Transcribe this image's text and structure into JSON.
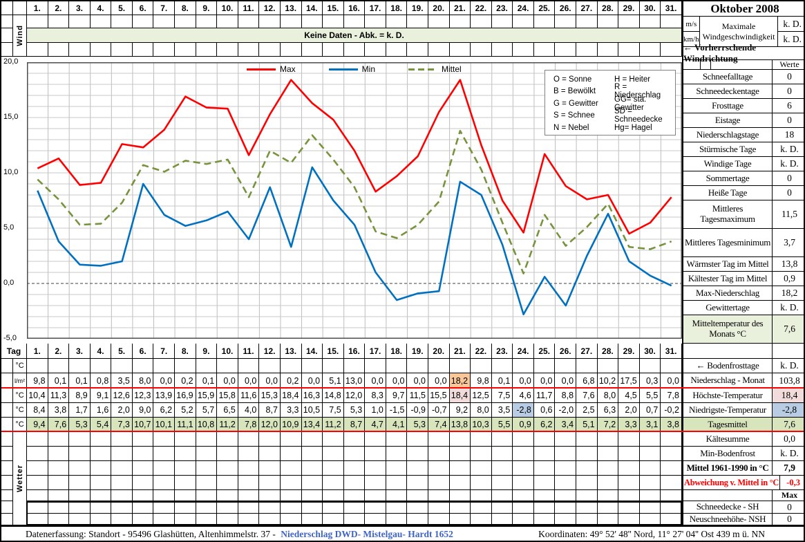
{
  "title": "Oktober 2008",
  "days": [
    "1.",
    "2.",
    "3.",
    "4.",
    "5.",
    "6.",
    "7.",
    "8.",
    "9.",
    "10.",
    "11.",
    "12.",
    "13.",
    "14.",
    "15.",
    "16.",
    "17.",
    "18.",
    "19.",
    "20.",
    "21.",
    "22.",
    "23.",
    "24.",
    "25.",
    "26.",
    "27.",
    "28.",
    "29.",
    "30.",
    "31."
  ],
  "top": {
    "wind_label": "Wind",
    "keine_daten": "Keine Daten - Abk. = k. D.",
    "ms": "m/s",
    "kmh": "km/h",
    "max_wind_label": "Maximale Windgeschwindigkeit",
    "max_wind_ms_value": "k. D.",
    "max_wind_kmh_value": "k. D.",
    "windrichtung": "← Vorherrschende Windrichtung",
    "werte_header": "Werte"
  },
  "sidebar_stats": [
    {
      "label": "Schneefalltage",
      "value": "0"
    },
    {
      "label": "Schneedeckentage",
      "value": "0"
    },
    {
      "label": "Frosttage",
      "value": "6"
    },
    {
      "label": "Eistage",
      "value": "0"
    },
    {
      "label": "Niederschlagstage",
      "value": "18"
    },
    {
      "label": "Stürmische Tage",
      "value": "k. D."
    },
    {
      "label": "Windige Tage",
      "value": "k. D."
    },
    {
      "label": "Sommertage",
      "value": "0"
    },
    {
      "label": "Heiße Tage",
      "value": "0"
    },
    {
      "label": "Mittleres Tagesmaximum",
      "value": "11,5"
    },
    {
      "label": "Mittleres Tagesminimum",
      "value": "3,7"
    },
    {
      "label": "Wärmster Tag im Mittel",
      "value": "13,8"
    },
    {
      "label": "Kältester Tag im Mittel",
      "value": "0,9"
    },
    {
      "label": "Max-Niederschlag",
      "value": "18,2"
    },
    {
      "label": "Gewittertage",
      "value": "k. D."
    },
    {
      "label": "Mitteltemperatur des Monats °C",
      "value": "7,6"
    }
  ],
  "sidebar_bottom": [
    {
      "label": "",
      "value": ""
    },
    {
      "label": "← Bodenfrosttage",
      "value": "k. D."
    },
    {
      "label": "Niederschlag - Monat",
      "value": "103,8"
    },
    {
      "label": "Höchste-Temperatur",
      "value": "18,4"
    },
    {
      "label": "Niedrigste-Temperatur",
      "value": "-2,8"
    },
    {
      "label": "Tagesmittel",
      "value": "7,6"
    },
    {
      "label": "Kältesumme",
      "value": "0,0"
    },
    {
      "label": "Min-Bodenfrost",
      "value": "k. D."
    },
    {
      "label": "Mittel 1961-1990 in °C",
      "value": "7,9"
    },
    {
      "label": "Abweichung v. Mittel in °C",
      "value": "-0,3"
    },
    {
      "label": "",
      "value": "Max"
    },
    {
      "label": "Schneedecke -   SH",
      "value": "0"
    },
    {
      "label": "Neuschneehöhe- NSH",
      "value": "0"
    }
  ],
  "weather_codes": {
    "left": [
      "O = Sonne",
      "B = Bewölkt",
      "G = Gewitter",
      "S = Schnee",
      "N = Nebel"
    ],
    "right": [
      "H = Heiter",
      "R = Niederschlag",
      "GG= sta. Gewitter",
      "SD = Schneedecke",
      "Hg= Hagel"
    ]
  },
  "chart_data": {
    "type": "line",
    "title": "",
    "x": [
      1,
      2,
      3,
      4,
      5,
      6,
      7,
      8,
      9,
      10,
      11,
      12,
      13,
      14,
      15,
      16,
      17,
      18,
      19,
      20,
      21,
      22,
      23,
      24,
      25,
      26,
      27,
      28,
      29,
      30,
      31
    ],
    "ylim": [
      -5,
      20
    ],
    "grid": true,
    "legend_position": "top-center",
    "yticks": [
      {
        "label": "20,0",
        "v": 20
      },
      {
        "label": "15,0",
        "v": 15
      },
      {
        "label": "10,0",
        "v": 10
      },
      {
        "label": "5,0",
        "v": 5
      },
      {
        "label": "0,0",
        "v": 0
      },
      {
        "label": "-5,0",
        "v": -5
      }
    ],
    "series": [
      {
        "name": "Max",
        "color": "#FF0000",
        "dash": false,
        "values": [
          10.4,
          11.3,
          8.9,
          9.1,
          12.6,
          12.3,
          13.9,
          16.9,
          15.9,
          15.8,
          11.6,
          15.3,
          18.4,
          16.3,
          14.8,
          12.0,
          8.3,
          9.7,
          11.5,
          15.5,
          18.4,
          12.5,
          7.5,
          4.6,
          11.7,
          8.8,
          7.6,
          8.0,
          4.5,
          5.5,
          7.8
        ]
      },
      {
        "name": "Min",
        "color": "#0070C0",
        "dash": false,
        "values": [
          8.4,
          3.8,
          1.7,
          1.6,
          2.0,
          9.0,
          6.2,
          5.2,
          5.7,
          6.5,
          4.0,
          8.7,
          3.3,
          10.5,
          7.5,
          5.3,
          1.0,
          -1.5,
          -0.9,
          -0.7,
          9.2,
          8.0,
          3.5,
          -2.8,
          0.6,
          -2.0,
          2.5,
          6.3,
          2.0,
          0.7,
          -0.2
        ]
      },
      {
        "name": "Mittel",
        "color": "#77933C",
        "dash": true,
        "values": [
          9.4,
          7.6,
          5.3,
          5.4,
          7.3,
          10.7,
          10.1,
          11.1,
          10.8,
          11.2,
          7.8,
          12.0,
          10.9,
          13.4,
          11.2,
          8.7,
          4.7,
          4.1,
          5.3,
          7.4,
          13.8,
          10.3,
          5.5,
          0.9,
          6.2,
          3.4,
          5.1,
          7.2,
          3.3,
          3.1,
          3.8
        ]
      }
    ]
  },
  "table": {
    "tag_label": "Tag",
    "rows": [
      {
        "unit": "°C",
        "values": []
      },
      {
        "unit": "l/m²",
        "values": [
          "9,8",
          "0,1",
          "0,1",
          "0,8",
          "3,5",
          "8,0",
          "0,0",
          "0,2",
          "0,1",
          "0,0",
          "0,0",
          "0,0",
          "0,2",
          "0,0",
          "5,1",
          "13,0",
          "0,0",
          "0,0",
          "0,0",
          "0,0",
          "18,2",
          "9,8",
          "0,1",
          "0,0",
          "0,0",
          "0,0",
          "6,8",
          "10,2",
          "17,5",
          "0,3",
          "0,0"
        ],
        "highlights": {
          "20": "orange"
        }
      },
      {
        "unit": "°C",
        "values": [
          "10,4",
          "11,3",
          "8,9",
          "9,1",
          "12,6",
          "12,3",
          "13,9",
          "16,9",
          "15,9",
          "15,8",
          "11,6",
          "15,3",
          "18,4",
          "16,3",
          "14,8",
          "12,0",
          "8,3",
          "9,7",
          "11,5",
          "15,5",
          "18,4",
          "12,5",
          "7,5",
          "4,6",
          "11,7",
          "8,8",
          "7,6",
          "8,0",
          "4,5",
          "5,5",
          "7,8"
        ],
        "highlights": {
          "20": "pink"
        }
      },
      {
        "unit": "°C",
        "values": [
          "8,4",
          "3,8",
          "1,7",
          "1,6",
          "2,0",
          "9,0",
          "6,2",
          "5,2",
          "5,7",
          "6,5",
          "4,0",
          "8,7",
          "3,3",
          "10,5",
          "7,5",
          "5,3",
          "1,0",
          "-1,5",
          "-0,9",
          "-0,7",
          "9,2",
          "8,0",
          "3,5",
          "-2,8",
          "0,6",
          "-2,0",
          "2,5",
          "6,3",
          "2,0",
          "0,7",
          "-0,2"
        ],
        "highlights": {
          "23": "blue"
        }
      },
      {
        "unit": "°C",
        "values": [
          "9,4",
          "7,6",
          "5,3",
          "5,4",
          "7,3",
          "10,7",
          "10,1",
          "11,1",
          "10,8",
          "11,2",
          "7,8",
          "12,0",
          "10,9",
          "13,4",
          "11,2",
          "8,7",
          "4,7",
          "4,1",
          "5,3",
          "7,4",
          "13,8",
          "10,3",
          "5,5",
          "0,9",
          "6,2",
          "3,4",
          "5,1",
          "7,2",
          "3,3",
          "3,1",
          "3,8"
        ],
        "green": true
      }
    ]
  },
  "wetter_label": "Wetter",
  "footer": {
    "left_plain": "Datenerfassung:  Standort -  95496  Glashütten, Altenhimmelstr. 37 -",
    "left_link": "Niederschlag DWD- Mistelgau- Hardt 1652",
    "right": "Koordinaten:  49° 52' 48'' Nord,   11° 27' 04'' Ost   439 m ü. NN"
  },
  "colors": {
    "line_max": "#FF0000",
    "line_min": "#0070C0",
    "line_mittel": "#77933C",
    "band_green": "#E9F0DC",
    "row_green": "#D8E4BC",
    "cell_orange": "#FAC898",
    "cell_pink": "#F1DBDB",
    "cell_blue": "#B8CCE4",
    "separator_red": "#FF0000",
    "link_blue": "#3E64C4"
  }
}
